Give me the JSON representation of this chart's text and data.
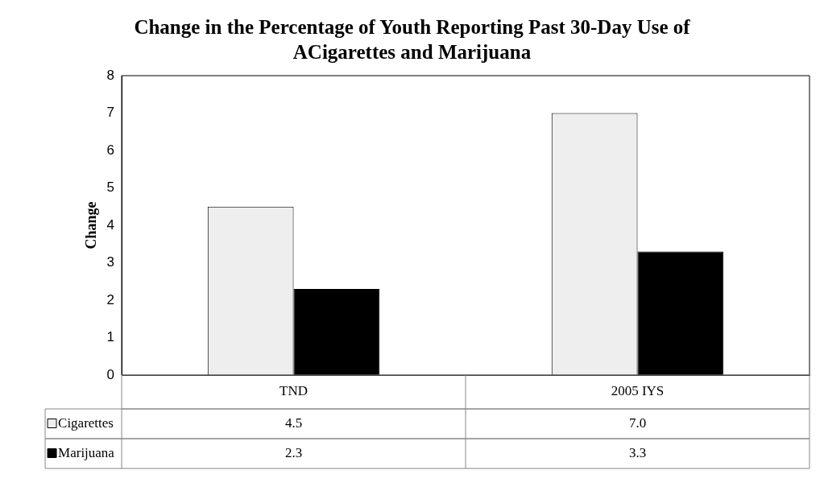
{
  "chart_data": {
    "type": "bar",
    "title": "Change in the Percentage of Youth Reporting Past 30-Day Use of ACigarettes and Marijuana",
    "ylabel": "Change",
    "categories": [
      "TND",
      "2005 IYS"
    ],
    "series": [
      {
        "name": "Cigarettes",
        "color": "#eeeeee",
        "values": [
          4.5,
          7.0
        ],
        "value_labels": [
          "4.5",
          "7.0"
        ]
      },
      {
        "name": "Marijuana",
        "color": "#000000",
        "values": [
          2.3,
          3.3
        ],
        "value_labels": [
          "2.3",
          "3.3"
        ]
      }
    ],
    "ylim": [
      0,
      8
    ],
    "yticks": [
      0,
      1,
      2,
      3,
      4,
      5,
      6,
      7,
      8
    ],
    "grid": false,
    "legend": "bottom",
    "data_labels": true
  }
}
